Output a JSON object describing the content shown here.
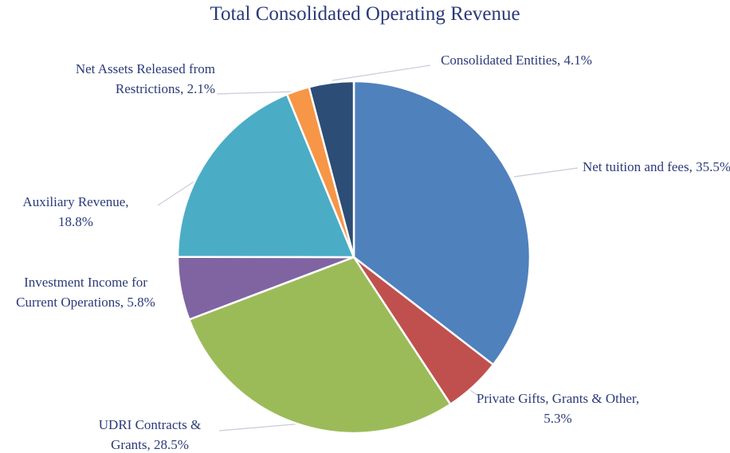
{
  "chart_data": {
    "type": "pie",
    "title": "Total Consolidated Operating Revenue",
    "categories": [
      "Net tuition and fees,",
      "Private Gifts, Grants & Other,",
      "UDRI Contracts & Grants,",
      "Investment Income for Current Operations,",
      "Auxiliary Revenue,",
      "Net Assets Released from Restrictions,",
      "Consolidated Entities,"
    ],
    "values": [
      35.5,
      5.3,
      28.5,
      5.8,
      18.8,
      2.1,
      4.1
    ],
    "value_labels": [
      "35.5%",
      "5.3%",
      "28.5%",
      "5.8%",
      "18.8%",
      "2.1%",
      "4.1%"
    ],
    "colors": [
      "#4f81bd",
      "#c0504d",
      "#9bbb59",
      "#8064a2",
      "#4bacc6",
      "#f79646",
      "#2c4d75"
    ]
  }
}
